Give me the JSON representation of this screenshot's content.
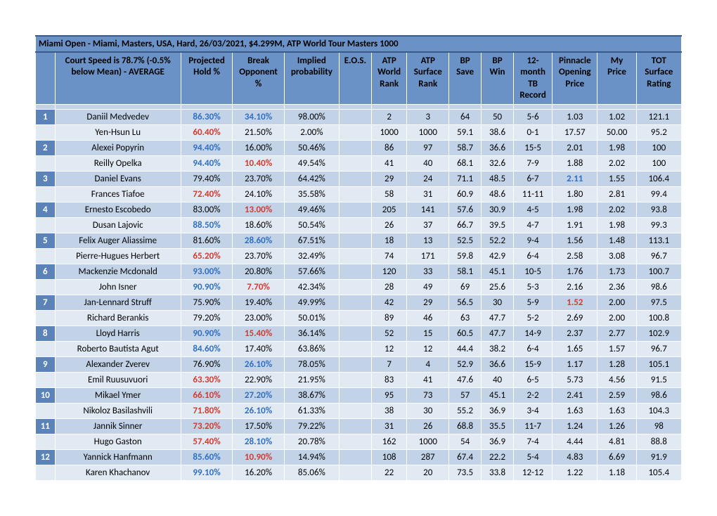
{
  "title": "Miami Open - Miami, Masters, USA, Hard, 26/03/2021, $4.299M, ATP World Tour Masters 1000",
  "subhead": "Court Speed is 78.7% (-0.5% below Mean) - AVERAGE",
  "headers": {
    "c2": "Projected Hold %",
    "c3": "Break Opponent %",
    "c4": "Implied probability",
    "c5": "E.O.S.",
    "c6": "ATP World Rank",
    "c7": "ATP Surface Rank",
    "c8": "BP Save",
    "c9": "BP Win",
    "c10": "12-month TB Record",
    "c11": "Pinnacle Opening Price",
    "c12": "My Price",
    "c13": "TOT Surface Rating"
  },
  "rows": [
    {
      "num": "1",
      "name": "Daniil Medvedev",
      "hold": "86.30%",
      "hold_c": "blue",
      "brk": "34.10%",
      "brk_c": "blue",
      "imp": "98.00%",
      "eos": "",
      "wr": "2",
      "sr": "3",
      "bps": "64",
      "bpw": "50",
      "tb": "5-6",
      "pin": "1.03",
      "my": "1.02",
      "tot": "121.1"
    },
    {
      "num": "",
      "name": "Yen-Hsun Lu",
      "hold": "60.40%",
      "hold_c": "red",
      "brk": "21.50%",
      "imp": "2.00%",
      "eos": "",
      "wr": "1000",
      "sr": "1000",
      "bps": "59.1",
      "bpw": "38.6",
      "tb": "0-1",
      "pin": "17.57",
      "my": "50.00",
      "tot": "95.2"
    },
    {
      "num": "2",
      "name": "Alexei Popyrin",
      "hold": "94.40%",
      "hold_c": "blue",
      "brk": "16.00%",
      "imp": "50.46%",
      "eos": "",
      "wr": "86",
      "sr": "97",
      "bps": "58.7",
      "bpw": "36.6",
      "tb": "15-5",
      "pin": "2.01",
      "my": "1.98",
      "tot": "100"
    },
    {
      "num": "",
      "name": "Reilly Opelka",
      "hold": "94.40%",
      "hold_c": "blue",
      "brk": "10.40%",
      "brk_c": "red",
      "imp": "49.54%",
      "eos": "",
      "wr": "41",
      "sr": "40",
      "bps": "68.1",
      "bpw": "32.6",
      "tb": "7-9",
      "pin": "1.88",
      "my": "2.02",
      "tot": "100"
    },
    {
      "num": "3",
      "name": "Daniel Evans",
      "hold": "79.40%",
      "brk": "23.70%",
      "imp": "64.42%",
      "eos": "",
      "wr": "29",
      "sr": "24",
      "bps": "71.1",
      "bpw": "48.5",
      "tb": "6-7",
      "pin": "2.11",
      "pin_c": "blue",
      "my": "1.55",
      "tot": "106.4"
    },
    {
      "num": "",
      "name": "Frances Tiafoe",
      "hold": "72.40%",
      "hold_c": "red",
      "brk": "24.10%",
      "imp": "35.58%",
      "eos": "",
      "wr": "58",
      "sr": "31",
      "bps": "60.9",
      "bpw": "48.6",
      "tb": "11-11",
      "pin": "1.80",
      "my": "2.81",
      "tot": "99.4"
    },
    {
      "num": "4",
      "name": "Ernesto Escobedo",
      "hold": "83.00%",
      "brk": "13.00%",
      "brk_c": "red",
      "imp": "49.46%",
      "eos": "",
      "wr": "205",
      "sr": "141",
      "bps": "57.6",
      "bpw": "30.9",
      "tb": "4-5",
      "pin": "1.98",
      "my": "2.02",
      "tot": "93.8"
    },
    {
      "num": "",
      "name": "Dusan Lajovic",
      "hold": "88.50%",
      "hold_c": "blue",
      "brk": "18.60%",
      "imp": "50.54%",
      "eos": "",
      "wr": "26",
      "sr": "37",
      "bps": "66.7",
      "bpw": "39.5",
      "tb": "4-7",
      "pin": "1.91",
      "my": "1.98",
      "tot": "99.3"
    },
    {
      "num": "5",
      "name": "Felix Auger Aliassime",
      "hold": "81.60%",
      "brk": "28.60%",
      "brk_c": "blue",
      "imp": "67.51%",
      "eos": "",
      "wr": "18",
      "sr": "13",
      "bps": "52.5",
      "bpw": "52.2",
      "tb": "9-4",
      "pin": "1.56",
      "my": "1.48",
      "tot": "113.1"
    },
    {
      "num": "",
      "name": "Pierre-Hugues Herbert",
      "hold": "65.20%",
      "hold_c": "red",
      "brk": "23.70%",
      "imp": "32.49%",
      "eos": "",
      "wr": "74",
      "sr": "171",
      "bps": "59.8",
      "bpw": "42.9",
      "tb": "6-4",
      "pin": "2.58",
      "my": "3.08",
      "tot": "96.7"
    },
    {
      "num": "6",
      "name": "Mackenzie Mcdonald",
      "hold": "93.00%",
      "hold_c": "blue",
      "brk": "20.80%",
      "imp": "57.66%",
      "eos": "",
      "wr": "120",
      "sr": "33",
      "bps": "58.1",
      "bpw": "45.1",
      "tb": "10-5",
      "pin": "1.76",
      "my": "1.73",
      "tot": "100.7"
    },
    {
      "num": "",
      "name": "John Isner",
      "hold": "90.90%",
      "hold_c": "blue",
      "brk": "7.70%",
      "brk_c": "red",
      "imp": "42.34%",
      "eos": "",
      "wr": "28",
      "sr": "49",
      "bps": "69",
      "bpw": "25.6",
      "tb": "5-3",
      "pin": "2.16",
      "my": "2.36",
      "tot": "98.6"
    },
    {
      "num": "7",
      "name": "Jan-Lennard Struff",
      "hold": "75.90%",
      "brk": "19.40%",
      "imp": "49.99%",
      "eos": "",
      "wr": "42",
      "sr": "29",
      "bps": "56.5",
      "bpw": "30",
      "tb": "5-9",
      "pin": "1.52",
      "pin_c": "red",
      "my": "2.00",
      "tot": "97.5"
    },
    {
      "num": "",
      "name": "Richard Berankis",
      "hold": "79.20%",
      "brk": "23.00%",
      "imp": "50.01%",
      "eos": "",
      "wr": "89",
      "sr": "46",
      "bps": "63",
      "bpw": "47.7",
      "tb": "5-2",
      "pin": "2.69",
      "my": "2.00",
      "tot": "100.8"
    },
    {
      "num": "8",
      "name": "Lloyd Harris",
      "hold": "90.90%",
      "hold_c": "blue",
      "brk": "15.40%",
      "brk_c": "red",
      "imp": "36.14%",
      "eos": "",
      "wr": "52",
      "sr": "15",
      "bps": "60.5",
      "bpw": "47.7",
      "tb": "14-9",
      "pin": "2.37",
      "my": "2.77",
      "tot": "102.9"
    },
    {
      "num": "",
      "name": "Roberto Bautista Agut",
      "hold": "84.60%",
      "hold_c": "blue",
      "brk": "17.40%",
      "imp": "63.86%",
      "eos": "",
      "wr": "12",
      "sr": "12",
      "bps": "44.4",
      "bpw": "38.2",
      "tb": "6-4",
      "pin": "1.65",
      "my": "1.57",
      "tot": "96.7"
    },
    {
      "num": "9",
      "name": "Alexander Zverev",
      "hold": "76.90%",
      "brk": "26.10%",
      "brk_c": "blue",
      "imp": "78.05%",
      "eos": "",
      "wr": "7",
      "sr": "4",
      "bps": "52.9",
      "bpw": "36.6",
      "tb": "15-9",
      "pin": "1.17",
      "my": "1.28",
      "tot": "105.1"
    },
    {
      "num": "",
      "name": "Emil Ruusuvuori",
      "hold": "63.30%",
      "hold_c": "red",
      "brk": "22.90%",
      "imp": "21.95%",
      "eos": "",
      "wr": "83",
      "sr": "41",
      "bps": "47.6",
      "bpw": "40",
      "tb": "6-5",
      "pin": "5.73",
      "my": "4.56",
      "tot": "91.5"
    },
    {
      "num": "10",
      "name": "Mikael Ymer",
      "hold": "66.10%",
      "hold_c": "red",
      "brk": "27.20%",
      "brk_c": "blue",
      "imp": "38.67%",
      "eos": "",
      "wr": "95",
      "sr": "73",
      "bps": "57",
      "bpw": "45.1",
      "tb": "2-2",
      "pin": "2.41",
      "my": "2.59",
      "tot": "98.6"
    },
    {
      "num": "",
      "name": "Nikoloz Basilashvili",
      "hold": "71.80%",
      "hold_c": "red",
      "brk": "26.10%",
      "brk_c": "blue",
      "imp": "61.33%",
      "eos": "",
      "wr": "38",
      "sr": "30",
      "bps": "55.2",
      "bpw": "36.9",
      "tb": "3-4",
      "pin": "1.63",
      "my": "1.63",
      "tot": "104.3"
    },
    {
      "num": "11",
      "name": "Jannik Sinner",
      "hold": "73.20%",
      "hold_c": "red",
      "brk": "17.50%",
      "imp": "79.22%",
      "eos": "",
      "wr": "31",
      "sr": "26",
      "bps": "68.8",
      "bpw": "35.5",
      "tb": "11-7",
      "pin": "1.24",
      "my": "1.26",
      "tot": "98"
    },
    {
      "num": "",
      "name": "Hugo Gaston",
      "hold": "57.40%",
      "hold_c": "red",
      "brk": "28.10%",
      "brk_c": "blue",
      "imp": "20.78%",
      "eos": "",
      "wr": "162",
      "sr": "1000",
      "bps": "54",
      "bpw": "36.9",
      "tb": "7-4",
      "pin": "4.44",
      "my": "4.81",
      "tot": "88.8"
    },
    {
      "num": "12",
      "name": "Yannick Hanfmann",
      "hold": "85.60%",
      "hold_c": "blue",
      "brk": "10.90%",
      "brk_c": "red",
      "imp": "14.94%",
      "eos": "",
      "wr": "108",
      "sr": "287",
      "bps": "67.4",
      "bpw": "22.2",
      "tb": "5-4",
      "pin": "4.83",
      "my": "6.69",
      "tot": "91.9"
    },
    {
      "num": "",
      "name": "Karen Khachanov",
      "hold": "99.10%",
      "hold_c": "blue",
      "brk": "16.20%",
      "imp": "85.06%",
      "eos": "",
      "wr": "22",
      "sr": "20",
      "bps": "73.5",
      "bpw": "33.8",
      "tb": "12-12",
      "pin": "1.22",
      "my": "1.18",
      "tot": "105.4"
    }
  ]
}
